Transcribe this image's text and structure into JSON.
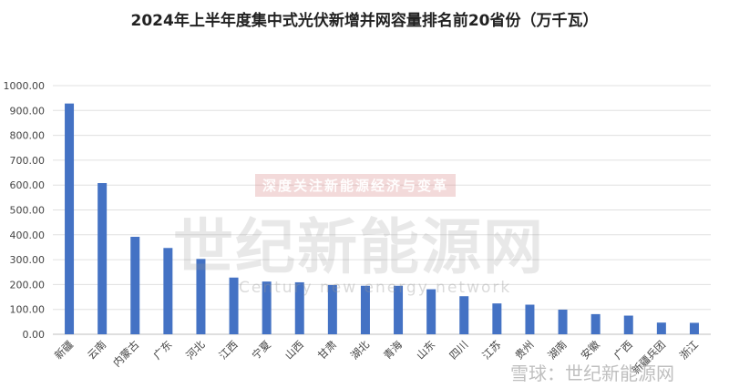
{
  "chart_data": {
    "type": "bar",
    "title": "2024年上半年度集中式光伏新增并网容量排名前20省份（万千瓦）",
    "categories": [
      "新疆",
      "云南",
      "内蒙古",
      "广东",
      "河北",
      "江西",
      "宁夏",
      "山西",
      "甘肃",
      "湖北",
      "青海",
      "山东",
      "四川",
      "江苏",
      "贵州",
      "湖南",
      "安徽",
      "广西",
      "新疆兵团",
      "浙江"
    ],
    "values": [
      928,
      608,
      392,
      347,
      303,
      228,
      212,
      209,
      198,
      195,
      195,
      181,
      153,
      124,
      119,
      99,
      81,
      75,
      47,
      46
    ],
    "ylim": [
      0,
      1000
    ],
    "yticks": [
      "0.00",
      "100.00",
      "200.00",
      "300.00",
      "400.00",
      "500.00",
      "600.00",
      "700.00",
      "800.00",
      "900.00",
      "1000.00"
    ],
    "grid": true,
    "bar_color": "#4472C4"
  },
  "watermarks": {
    "main": "世纪新能源网",
    "band": "深度关注新能源经济与变革",
    "english": "Century new energy network",
    "xueqiu": "雪球：世纪新能源网"
  }
}
